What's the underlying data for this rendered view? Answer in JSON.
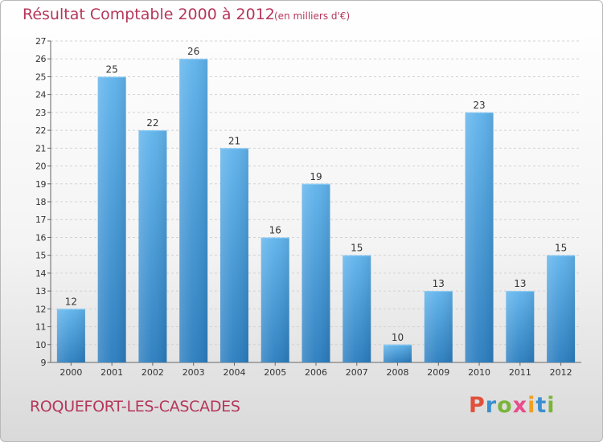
{
  "header": {
    "title": "Résultat Comptable 2000 à 2012",
    "unit": "(en milliers d'€)"
  },
  "footer": {
    "commune": "ROQUEFORT-LES-CASCADES",
    "logo": "Proxiti"
  },
  "colors": {
    "title": "#b5375a",
    "bar_light": "#5fb3ec",
    "bar_dark": "#2a7dbf",
    "logo_letters": [
      "#e0503a",
      "#3a8fd0",
      "#7ab53a",
      "#e84c8a",
      "#f0a020",
      "#3a8fd0",
      "#7ab53a"
    ]
  },
  "chart_data": {
    "type": "bar",
    "categories": [
      "2000",
      "2001",
      "2002",
      "2003",
      "2004",
      "2005",
      "2006",
      "2007",
      "2008",
      "2009",
      "2010",
      "2011",
      "2012"
    ],
    "values": [
      12,
      25,
      22,
      26,
      21,
      16,
      19,
      15,
      10,
      13,
      23,
      13,
      15
    ],
    "title": "Résultat Comptable 2000 à 2012",
    "ylim": [
      9,
      27
    ],
    "yticks": [
      9,
      10,
      11,
      12,
      13,
      14,
      15,
      16,
      17,
      18,
      19,
      20,
      21,
      22,
      23,
      24,
      25,
      26,
      27
    ],
    "grid": true,
    "legend": "none",
    "data_labels": true
  }
}
